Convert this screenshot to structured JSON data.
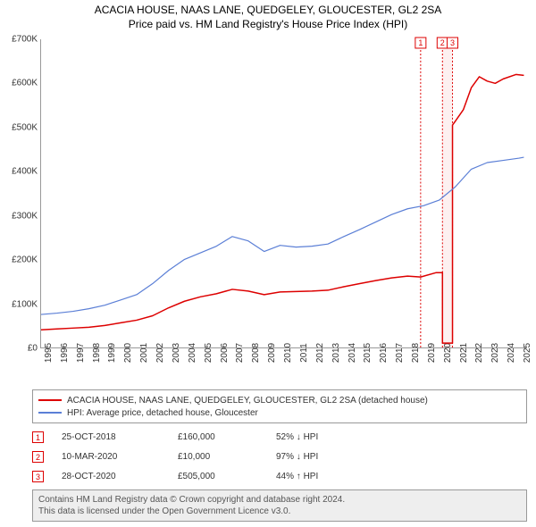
{
  "title": {
    "line1": "ACACIA HOUSE, NAAS LANE, QUEDGELEY, GLOUCESTER, GL2 2SA",
    "line2": "Price paid vs. HM Land Registry's House Price Index (HPI)"
  },
  "chart": {
    "type": "line",
    "background_color": "#ffffff",
    "axis_color": "#999999",
    "xlim": [
      1995,
      2025.5
    ],
    "ylim": [
      0,
      700000
    ],
    "yticks": [
      0,
      100000,
      200000,
      300000,
      400000,
      500000,
      600000,
      700000
    ],
    "ytick_labels": [
      "£0",
      "£100K",
      "£200K",
      "£300K",
      "£400K",
      "£500K",
      "£600K",
      "£700K"
    ],
    "xticks": [
      1995,
      1996,
      1997,
      1998,
      1999,
      2000,
      2001,
      2002,
      2003,
      2004,
      2005,
      2006,
      2007,
      2008,
      2009,
      2010,
      2011,
      2012,
      2013,
      2014,
      2015,
      2016,
      2017,
      2018,
      2019,
      2020,
      2021,
      2022,
      2023,
      2024,
      2025
    ],
    "label_fontsize": 10,
    "series": [
      {
        "name": "price_paid",
        "color": "#dd0000",
        "width": 1.5,
        "points": [
          [
            1995,
            40000
          ],
          [
            1996,
            42000
          ],
          [
            1997,
            44000
          ],
          [
            1998,
            46000
          ],
          [
            1999,
            50000
          ],
          [
            2000,
            56000
          ],
          [
            2001,
            62000
          ],
          [
            2002,
            72000
          ],
          [
            2003,
            90000
          ],
          [
            2004,
            105000
          ],
          [
            2005,
            115000
          ],
          [
            2006,
            122000
          ],
          [
            2007,
            132000
          ],
          [
            2008,
            128000
          ],
          [
            2009,
            120000
          ],
          [
            2010,
            126000
          ],
          [
            2011,
            127000
          ],
          [
            2012,
            128000
          ],
          [
            2013,
            130000
          ],
          [
            2014,
            138000
          ],
          [
            2015,
            145000
          ],
          [
            2016,
            152000
          ],
          [
            2017,
            158000
          ],
          [
            2018,
            162000
          ],
          [
            2018.82,
            160000
          ],
          [
            2019.8,
            170000
          ],
          [
            2020.19,
            170000
          ],
          [
            2020.19,
            10000
          ],
          [
            2020.82,
            10000
          ],
          [
            2020.82,
            505000
          ],
          [
            2021.5,
            540000
          ],
          [
            2022,
            590000
          ],
          [
            2022.5,
            615000
          ],
          [
            2023,
            605000
          ],
          [
            2023.5,
            600000
          ],
          [
            2024,
            610000
          ],
          [
            2024.8,
            620000
          ],
          [
            2025.3,
            618000
          ]
        ]
      },
      {
        "name": "hpi",
        "color": "#5b7fd6",
        "width": 1.2,
        "points": [
          [
            1995,
            75000
          ],
          [
            1996,
            78000
          ],
          [
            1997,
            82000
          ],
          [
            1998,
            88000
          ],
          [
            1999,
            96000
          ],
          [
            2000,
            108000
          ],
          [
            2001,
            120000
          ],
          [
            2002,
            145000
          ],
          [
            2003,
            175000
          ],
          [
            2004,
            200000
          ],
          [
            2005,
            215000
          ],
          [
            2006,
            230000
          ],
          [
            2007,
            252000
          ],
          [
            2008,
            242000
          ],
          [
            2009,
            218000
          ],
          [
            2010,
            232000
          ],
          [
            2011,
            228000
          ],
          [
            2012,
            230000
          ],
          [
            2013,
            235000
          ],
          [
            2014,
            252000
          ],
          [
            2015,
            268000
          ],
          [
            2016,
            285000
          ],
          [
            2017,
            302000
          ],
          [
            2018,
            315000
          ],
          [
            2019,
            322000
          ],
          [
            2020,
            335000
          ],
          [
            2021,
            365000
          ],
          [
            2022,
            405000
          ],
          [
            2023,
            420000
          ],
          [
            2024,
            425000
          ],
          [
            2025,
            430000
          ],
          [
            2025.3,
            432000
          ]
        ]
      }
    ],
    "event_markers": [
      {
        "label": "1",
        "x": 2018.82
      },
      {
        "label": "2",
        "x": 2020.19
      },
      {
        "label": "3",
        "x": 2020.82
      }
    ],
    "shaded_range": {
      "x0": 2020.19,
      "x1": 2020.82
    }
  },
  "legend": {
    "items": [
      {
        "color": "#dd0000",
        "label": "ACACIA HOUSE, NAAS LANE, QUEDGELEY, GLOUCESTER, GL2 2SA (detached house)"
      },
      {
        "color": "#5b7fd6",
        "label": "HPI: Average price, detached house, Gloucester"
      }
    ]
  },
  "events": [
    {
      "num": "1",
      "date": "25-OCT-2018",
      "price": "£160,000",
      "delta": "52% ↓ HPI"
    },
    {
      "num": "2",
      "date": "10-MAR-2020",
      "price": "£10,000",
      "delta": "97% ↓ HPI"
    },
    {
      "num": "3",
      "date": "28-OCT-2020",
      "price": "£505,000",
      "delta": "44% ↑ HPI"
    }
  ],
  "footer": {
    "line1": "Contains HM Land Registry data © Crown copyright and database right 2024.",
    "line2": "This data is licensed under the Open Government Licence v3.0."
  }
}
